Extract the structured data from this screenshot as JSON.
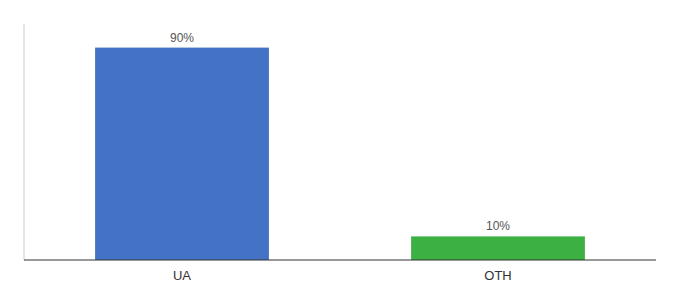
{
  "chart_data": {
    "type": "bar",
    "categories": [
      "UA",
      "OTH"
    ],
    "values": [
      90,
      10
    ],
    "value_labels": [
      "90%",
      "10%"
    ],
    "colors": [
      "#4472C4",
      "#3CB043"
    ],
    "ylim": [
      0,
      100
    ],
    "data_labels": true,
    "tick_labels": "x"
  }
}
